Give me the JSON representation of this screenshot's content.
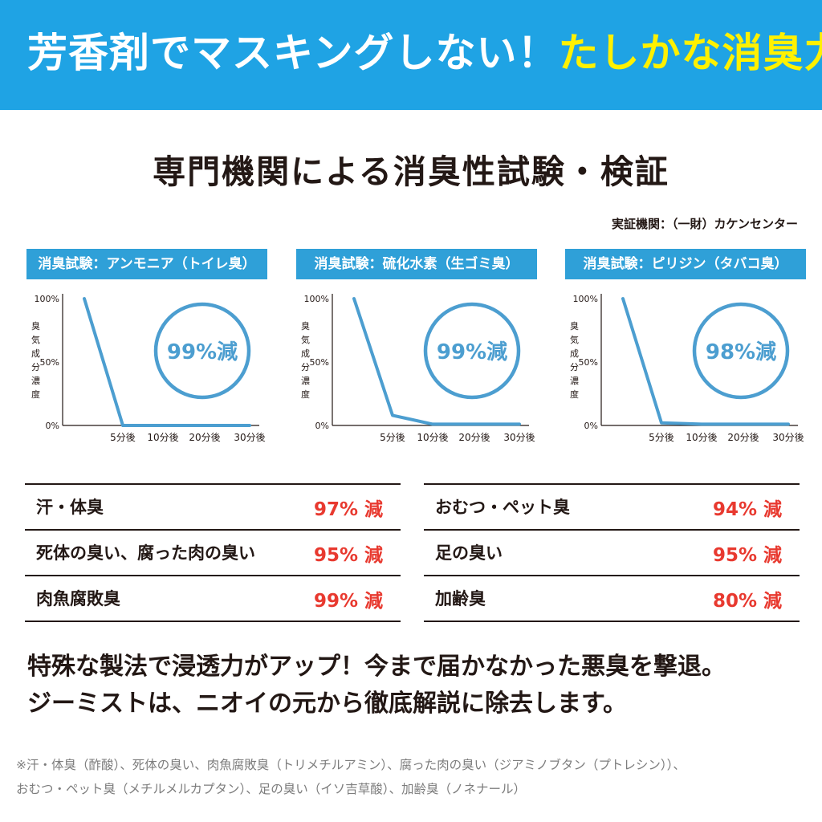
{
  "banner": {
    "text_white": "芳香剤でマスキングしない！",
    "text_yellow": "たしかな消臭力"
  },
  "section_title": "専門機関による消臭性試験・検証",
  "organization": "実証機関：（一財）カケンセンター",
  "colors": {
    "banner_blue": "#1fa3e4",
    "label_blue": "#2fa0d8",
    "line_blue": "#4c9ed0",
    "result_red": "#e8392f",
    "note_gray": "#7d7d7d"
  },
  "chart_data": [
    {
      "type": "line",
      "title": "消臭試験：アンモニア（トイレ臭）",
      "ylabel": "臭気成分濃度",
      "ytick_labels": [
        "100%",
        "50%",
        "0%"
      ],
      "yticks": [
        100,
        50,
        0
      ],
      "ylim": [
        0,
        100
      ],
      "categories": [
        "",
        "5分後",
        "10分後",
        "20分後",
        "30分後"
      ],
      "values": [
        100,
        0,
        0,
        0,
        0
      ],
      "annotation": "99%減",
      "grid": false
    },
    {
      "type": "line",
      "title": "消臭試験：硫化水素（生ゴミ臭）",
      "ylabel": "臭気成分濃度",
      "ytick_labels": [
        "100%",
        "50%",
        "0%"
      ],
      "yticks": [
        100,
        50,
        0
      ],
      "ylim": [
        0,
        100
      ],
      "categories": [
        "",
        "5分後",
        "10分後",
        "20分後",
        "30分後"
      ],
      "values": [
        100,
        8,
        1,
        1,
        1
      ],
      "annotation": "99%減",
      "grid": false
    },
    {
      "type": "line",
      "title": "消臭試験：ピリジン（タバコ臭）",
      "ylabel": "臭気成分濃度",
      "ytick_labels": [
        "100%",
        "50%",
        "0%"
      ],
      "yticks": [
        100,
        50,
        0
      ],
      "ylim": [
        0,
        100
      ],
      "categories": [
        "",
        "5分後",
        "10分後",
        "20分後",
        "30分後"
      ],
      "values": [
        100,
        2,
        1,
        1,
        1
      ],
      "annotation": "98%減",
      "grid": false
    }
  ],
  "results_left": [
    {
      "name": "汗・体臭",
      "value": "97% 減"
    },
    {
      "name": "死体の臭い、腐った肉の臭い",
      "value": "95% 減"
    },
    {
      "name": "肉魚腐敗臭",
      "value": "99% 減"
    }
  ],
  "results_right": [
    {
      "name": "おむつ・ペット臭",
      "value": "94% 減"
    },
    {
      "name": "足の臭い",
      "value": "95% 減"
    },
    {
      "name": "加齢臭",
      "value": "80% 減"
    }
  ],
  "description": {
    "line1": "特殊な製法で浸透力がアップ！今まで届かなかった悪臭を撃退。",
    "line2": "ジーミストは、ニオイの元から徹底解説に除去します。"
  },
  "footnote": {
    "line1": "※汗・体臭（酢酸）、死体の臭い、肉魚腐敗臭（トリメチルアミン）、腐った肉の臭い（ジアミノブタン（プトレシン））、",
    "line2": "おむつ・ペット臭（メチルメルカプタン）、足の臭い（イソ吉草酸）、加齢臭（ノネナール）"
  }
}
